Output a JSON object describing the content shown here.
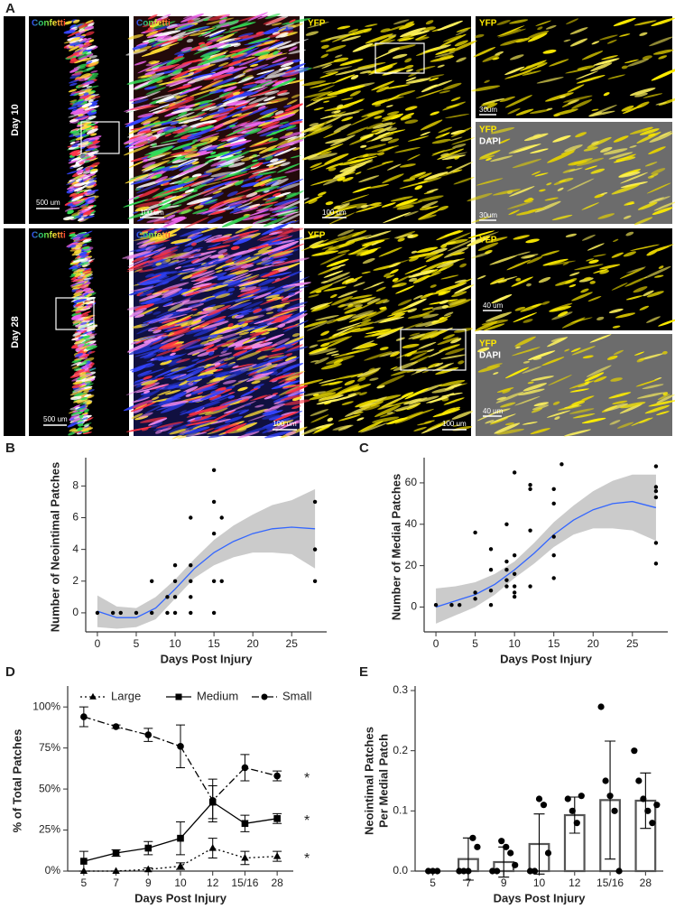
{
  "panel_a": {
    "letter": "A",
    "day_labels": [
      "Day 10",
      "Day 28"
    ],
    "confetti": "Confetti",
    "yfp": "YFP",
    "dapi": "DAPI",
    "scale_bars": [
      "500 um",
      "100 um",
      "100 um",
      "30um",
      "30um",
      "500 um",
      "100 um",
      "100 um",
      "40 um",
      "40 um"
    ]
  },
  "chart_data": [
    {
      "type": "scatter",
      "panel": "B",
      "xlabel": "Days Post Injury",
      "ylabel": "Number of Neointimal Patches",
      "xlim": [
        -1.5,
        29.5
      ],
      "ylim": [
        -1.2,
        9.5
      ],
      "xticks": [
        0,
        5,
        10,
        15,
        20,
        25
      ],
      "yticks": [
        0,
        2,
        4,
        6,
        8
      ],
      "color": "#000000",
      "fit_color": "#3366ff",
      "band_color": "#bebebe",
      "x": [
        0,
        2,
        3,
        5,
        7,
        7,
        9,
        9,
        10,
        10,
        10,
        10,
        12,
        12,
        12,
        12,
        12,
        15,
        15,
        15,
        15,
        15,
        16,
        16,
        28,
        28,
        28
      ],
      "values": [
        0,
        0,
        0,
        0,
        0,
        2,
        1,
        0,
        0,
        1,
        2,
        3,
        0,
        1,
        2,
        3,
        6,
        0,
        2,
        5,
        7,
        9,
        2,
        6,
        2,
        4,
        7
      ],
      "fit": {
        "x": [
          0,
          2.5,
          5,
          7.5,
          10,
          12.5,
          15,
          17.5,
          20,
          22.5,
          25,
          28
        ],
        "values": [
          0.1,
          -0.3,
          -0.3,
          0.3,
          1.5,
          2.8,
          3.8,
          4.5,
          5.0,
          5.3,
          5.4,
          5.3
        ],
        "lower": [
          -0.9,
          -1.0,
          -0.9,
          -0.4,
          0.9,
          2.2,
          3.0,
          3.5,
          3.8,
          3.8,
          3.7,
          2.8
        ],
        "upper": [
          1.1,
          0.4,
          0.3,
          1.0,
          2.1,
          3.4,
          4.6,
          5.5,
          6.2,
          6.8,
          7.1,
          7.8
        ]
      }
    },
    {
      "type": "scatter",
      "panel": "C",
      "xlabel": "Days Post Injury",
      "ylabel": "Number of Medial Patches",
      "xlim": [
        -1.5,
        29.5
      ],
      "ylim": [
        -12,
        70
      ],
      "xticks": [
        0,
        5,
        10,
        15,
        20,
        25
      ],
      "yticks": [
        0,
        20,
        40,
        60
      ],
      "color": "#000000",
      "fit_color": "#3366ff",
      "band_color": "#bebebe",
      "x": [
        0,
        2,
        3,
        5,
        5,
        5,
        7,
        7,
        7,
        7,
        9,
        9,
        9,
        9,
        9,
        10,
        10,
        10,
        10,
        10,
        10,
        12,
        12,
        12,
        12,
        15,
        15,
        15,
        15,
        15,
        16,
        28,
        28,
        28,
        28,
        28,
        28
      ],
      "values": [
        1,
        1,
        1,
        4,
        7,
        36,
        1,
        8,
        18,
        28,
        10,
        13,
        18,
        22,
        40,
        5,
        7,
        10,
        16,
        25,
        65,
        10,
        37,
        57,
        59,
        14,
        25,
        34,
        50,
        57,
        69,
        21,
        31,
        53,
        56,
        58,
        68
      ],
      "fit": {
        "x": [
          0,
          2.5,
          5,
          7.5,
          10,
          12.5,
          15,
          17.5,
          20,
          22.5,
          25,
          28
        ],
        "values": [
          0,
          3,
          6,
          11,
          18,
          26,
          35,
          42,
          47,
          50,
          51,
          48
        ],
        "lower": [
          -8,
          -4,
          0,
          6,
          14,
          21,
          29,
          35,
          38,
          38,
          37,
          32
        ],
        "upper": [
          9,
          10,
          12,
          16,
          22,
          31,
          41,
          49,
          56,
          61,
          64,
          64
        ]
      }
    },
    {
      "type": "line",
      "panel": "D",
      "xlabel": "Days Post Injury",
      "ylabel": "% of Total Patches",
      "categories": [
        "5",
        "7",
        "9",
        "10",
        "12",
        "15/16",
        "28"
      ],
      "ylim": [
        0,
        110
      ],
      "yticks": [
        {
          "value": 0,
          "label": "0%"
        },
        {
          "value": 25,
          "label": "25%"
        },
        {
          "value": 50,
          "label": "50%"
        },
        {
          "value": 75,
          "label": "75%"
        },
        {
          "value": 100,
          "label": "100%"
        }
      ],
      "series": [
        {
          "name": "Large",
          "color": "#000000",
          "linestyle": "dotted",
          "marker": "triangle",
          "values": [
            0,
            0,
            1,
            3,
            14,
            8,
            9
          ],
          "errors": [
            0,
            0,
            1,
            2,
            6,
            4,
            3
          ]
        },
        {
          "name": "Medium",
          "color": "#000000",
          "linestyle": "solid",
          "marker": "square",
          "values": [
            6,
            11,
            14,
            20,
            42,
            29,
            32
          ],
          "errors": [
            6,
            2,
            4,
            10,
            10,
            5,
            3
          ]
        },
        {
          "name": "Small",
          "color": "#000000",
          "linestyle": "dashdot",
          "marker": "circle",
          "values": [
            94,
            88,
            83,
            76,
            43,
            63,
            58
          ],
          "errors": [
            6,
            1,
            4,
            13,
            13,
            8,
            3
          ]
        }
      ],
      "annotations": [
        "*",
        "*",
        "*"
      ]
    },
    {
      "type": "bar",
      "panel": "E",
      "xlabel": "Days Post Injury",
      "ylabel": [
        "Neointimal Patches",
        "Per Medial Patch"
      ],
      "categories": [
        "5",
        "7",
        "9",
        "10",
        "12",
        "15/16",
        "28"
      ],
      "ylim": [
        0,
        0.3
      ],
      "yticks": [
        {
          "value": 0,
          "label": "0.0"
        },
        0.1,
        0.2,
        0.3
      ],
      "bar_color": "#555555",
      "point_color": "#000000",
      "values": [
        0,
        0.02,
        0.015,
        0.045,
        0.093,
        0.118,
        0.117
      ],
      "errors": [
        0,
        0.035,
        0.025,
        0.05,
        0.03,
        0.098,
        0.046
      ],
      "points": [
        [
          0,
          0,
          0
        ],
        [
          0,
          0,
          0,
          0.055,
          0.04
        ],
        [
          0,
          0,
          0.05,
          0.04,
          0.03,
          0.01
        ],
        [
          0,
          0,
          0.12,
          0.11,
          0.03
        ],
        [
          0.12,
          0.1,
          0.08,
          0.125
        ],
        [
          0.273,
          0.15,
          0.125,
          0.1,
          0
        ],
        [
          0.2,
          0.15,
          0.12,
          0.1,
          0.08,
          0.11
        ]
      ]
    }
  ]
}
